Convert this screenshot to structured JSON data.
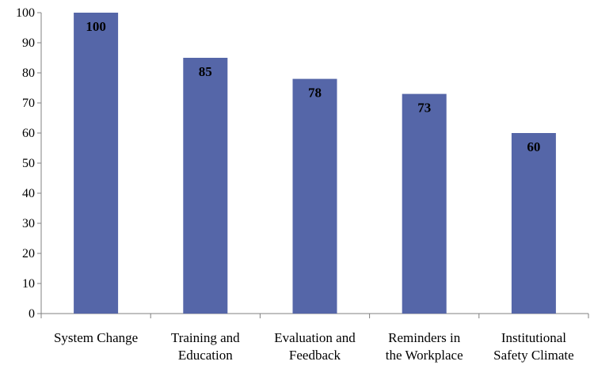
{
  "chart_data": {
    "type": "bar",
    "categories": [
      [
        "System Change"
      ],
      [
        "Training and",
        "Education"
      ],
      [
        "Evaluation and",
        "Feedback"
      ],
      [
        "Reminders in",
        "the Workplace"
      ],
      [
        "Institutional",
        "Safety Climate"
      ]
    ],
    "values": [
      100,
      85,
      78,
      73,
      60
    ],
    "data_labels": [
      "100",
      "85",
      "78",
      "73",
      "60"
    ],
    "ylim": [
      0,
      100
    ],
    "yticks": [
      0,
      10,
      20,
      30,
      40,
      50,
      60,
      70,
      80,
      90,
      100
    ],
    "ytick_labels": [
      "0",
      "10",
      "20",
      "30",
      "40",
      "50",
      "60",
      "70",
      "80",
      "90",
      "100"
    ],
    "grid": false,
    "title": "",
    "xlabel": "",
    "ylabel": "",
    "colors": {
      "bar": "#5566a8",
      "axis": "#808080"
    }
  }
}
